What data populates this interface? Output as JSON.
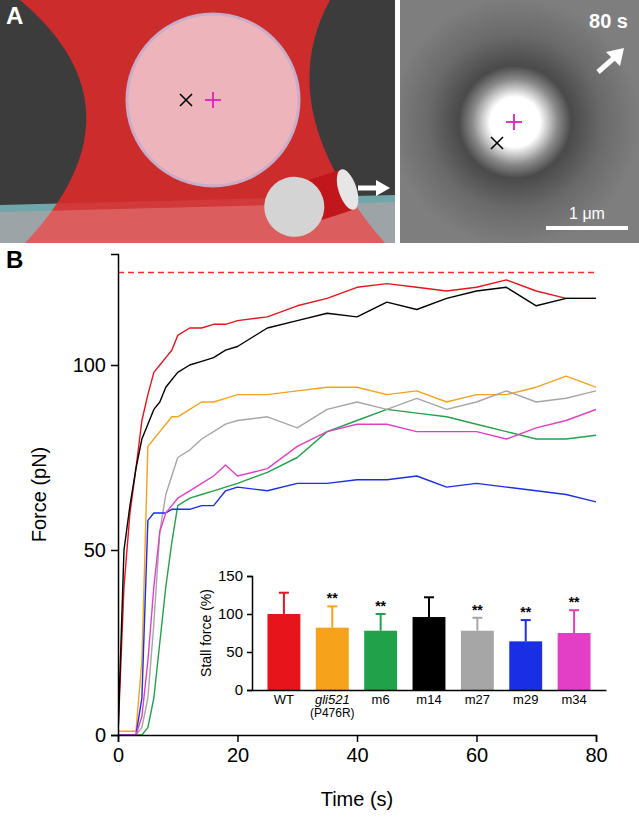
{
  "panel_a": {
    "letter": "A",
    "time_label": "80 s",
    "scale_bar_label": "1 μm"
  },
  "panel_b_letter": "B",
  "chart_data": [
    {
      "type": "line",
      "x_label": "Time (s)",
      "y_label": "Force (pN)",
      "x": [
        0,
        1,
        2,
        3,
        4,
        5,
        6,
        7,
        8,
        9,
        10,
        12,
        14,
        16,
        18,
        20,
        25,
        30,
        35,
        40,
        45,
        50,
        55,
        60,
        65,
        70,
        75,
        80
      ],
      "xlim": [
        0,
        80
      ],
      "xticks": [
        0,
        20,
        40,
        60,
        80
      ],
      "ylim": [
        0,
        130
      ],
      "yticks": [
        0,
        50,
        100
      ],
      "reference_lines": [
        {
          "value": 125,
          "color": "#ff2a2a",
          "line_style": "dashed"
        }
      ],
      "series": [
        {
          "color": "#e8141b",
          "values": [
            0,
            40,
            60,
            72,
            85,
            92,
            98,
            100,
            102,
            104,
            108,
            110,
            110,
            111,
            111,
            112,
            113,
            116,
            118,
            121,
            122,
            121,
            120,
            121,
            123,
            120,
            118,
            118
          ]
        },
        {
          "color": "#f7a21b",
          "values": [
            1,
            1,
            1,
            1,
            20,
            78,
            80,
            82,
            84,
            86,
            86,
            88,
            90,
            90,
            91,
            92,
            92,
            93,
            94,
            94,
            92,
            93,
            90,
            92,
            92,
            94,
            97,
            94
          ]
        },
        {
          "color": "#21a24a",
          "values": [
            0,
            0,
            0,
            0,
            0,
            2,
            10,
            25,
            40,
            52,
            62,
            64,
            65,
            66,
            67,
            68,
            71,
            75,
            82,
            85,
            88,
            87,
            86,
            84,
            82,
            80,
            80,
            81
          ]
        },
        {
          "color": "#000000",
          "values": [
            0,
            50,
            62,
            72,
            80,
            84,
            88,
            90,
            94,
            96,
            98,
            100,
            101,
            102,
            104,
            105,
            110,
            112,
            114,
            113,
            117,
            115,
            118,
            120,
            121,
            116,
            118,
            118
          ]
        },
        {
          "color": "#a6a6a6",
          "values": [
            0,
            0,
            0,
            0,
            2,
            10,
            30,
            55,
            65,
            70,
            75,
            77,
            80,
            82,
            84,
            85,
            86,
            83,
            88,
            90,
            88,
            91,
            88,
            90,
            93,
            90,
            91,
            93
          ]
        },
        {
          "color": "#1a2ee6",
          "values": [
            0,
            0,
            0,
            0,
            10,
            58,
            60,
            60,
            60,
            61,
            61,
            61,
            62,
            62,
            66,
            67,
            66,
            68,
            68,
            69,
            69,
            70,
            67,
            68,
            67,
            66,
            65,
            63
          ]
        },
        {
          "color": "#e33fc6",
          "values": [
            0,
            0,
            0,
            0,
            5,
            20,
            40,
            55,
            60,
            62,
            64,
            66,
            68,
            70,
            73,
            70,
            72,
            78,
            82,
            84,
            84,
            82,
            82,
            82,
            80,
            83,
            85,
            88
          ]
        }
      ]
    },
    {
      "type": "bar",
      "y_label": "Stall force (%)",
      "categories": [
        "WT",
        "gli521 (P476R)",
        "m6",
        "m14",
        "m27",
        "m29",
        "m34"
      ],
      "values": [
        100,
        82,
        78,
        96,
        78,
        64,
        75
      ],
      "errors": [
        28,
        28,
        22,
        26,
        17,
        28,
        30
      ],
      "significance": [
        null,
        "**",
        "**",
        null,
        "**",
        "**",
        "**"
      ],
      "colors": [
        "#e8141b",
        "#f7a21b",
        "#21a24a",
        "#000000",
        "#a6a6a6",
        "#1a2ee6",
        "#e33fc6"
      ],
      "ylim": [
        0,
        150
      ],
      "yticks": [
        0,
        50,
        100,
        150
      ]
    }
  ]
}
